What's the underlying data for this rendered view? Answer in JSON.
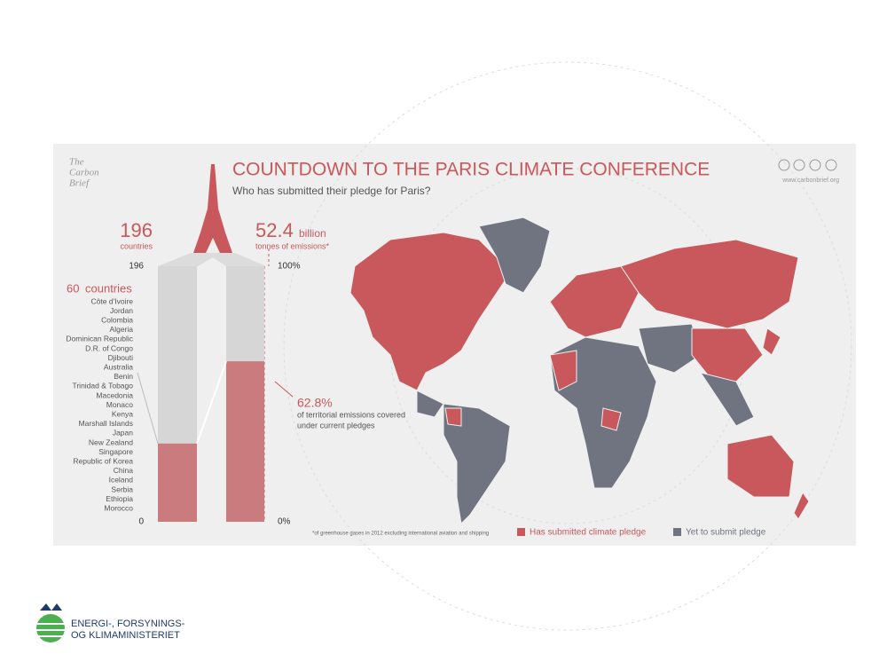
{
  "header": {
    "logo": [
      "The",
      "Carbon",
      "Brief"
    ],
    "title": "COUNTDOWN TO THE PARIS CLIMATE CONFERENCE",
    "subtitle": "Who has submitted their pledge for Paris?",
    "website": "www.carbonbrief.org"
  },
  "countries": {
    "total": 196,
    "total_label": "countries",
    "axis": [
      {
        "value": 196,
        "label": "196"
      },
      {
        "value": 0,
        "label": "0"
      }
    ],
    "submitted": 60,
    "submitted_label": "countries",
    "list": [
      "Côte d'Ivoire",
      "Jordan",
      "Colombia",
      "Algeria",
      "Dominican Republic",
      "D.R. of Congo",
      "Djibouti",
      "Australia",
      "Benin",
      "Trinidad & Tobago",
      "Macedonia",
      "Monaco",
      "Kenya",
      "Marshall Islands",
      "Japan",
      "New Zealand",
      "Singapore",
      "Republic of Korea",
      "China",
      "Iceland",
      "Serbia",
      "Ethiopia",
      "Morocco"
    ]
  },
  "emissions": {
    "total": 52.4,
    "unit": "billion",
    "unit_label": "tonnes of emissions*",
    "axis": [
      {
        "value": 100,
        "label": "100%"
      },
      {
        "value": 0,
        "label": "0%"
      }
    ],
    "covered": {
      "value": 62.8,
      "label": "62.8%"
    },
    "caption": [
      "of territorial emissions covered",
      "under current pledges"
    ]
  },
  "footnote": "*of greenhouse gases in 2012 excluding international aviation and shipping",
  "legend": [
    {
      "label": "Has submitted climate pledge",
      "color": "#c8585b"
    },
    {
      "label": "Yet to submit pledge",
      "color": "#6f7480"
    }
  ],
  "footer": {
    "lines": [
      "ENERGI-, FORSYNINGS-",
      "OG KLIMAMINISTERIET"
    ]
  }
}
